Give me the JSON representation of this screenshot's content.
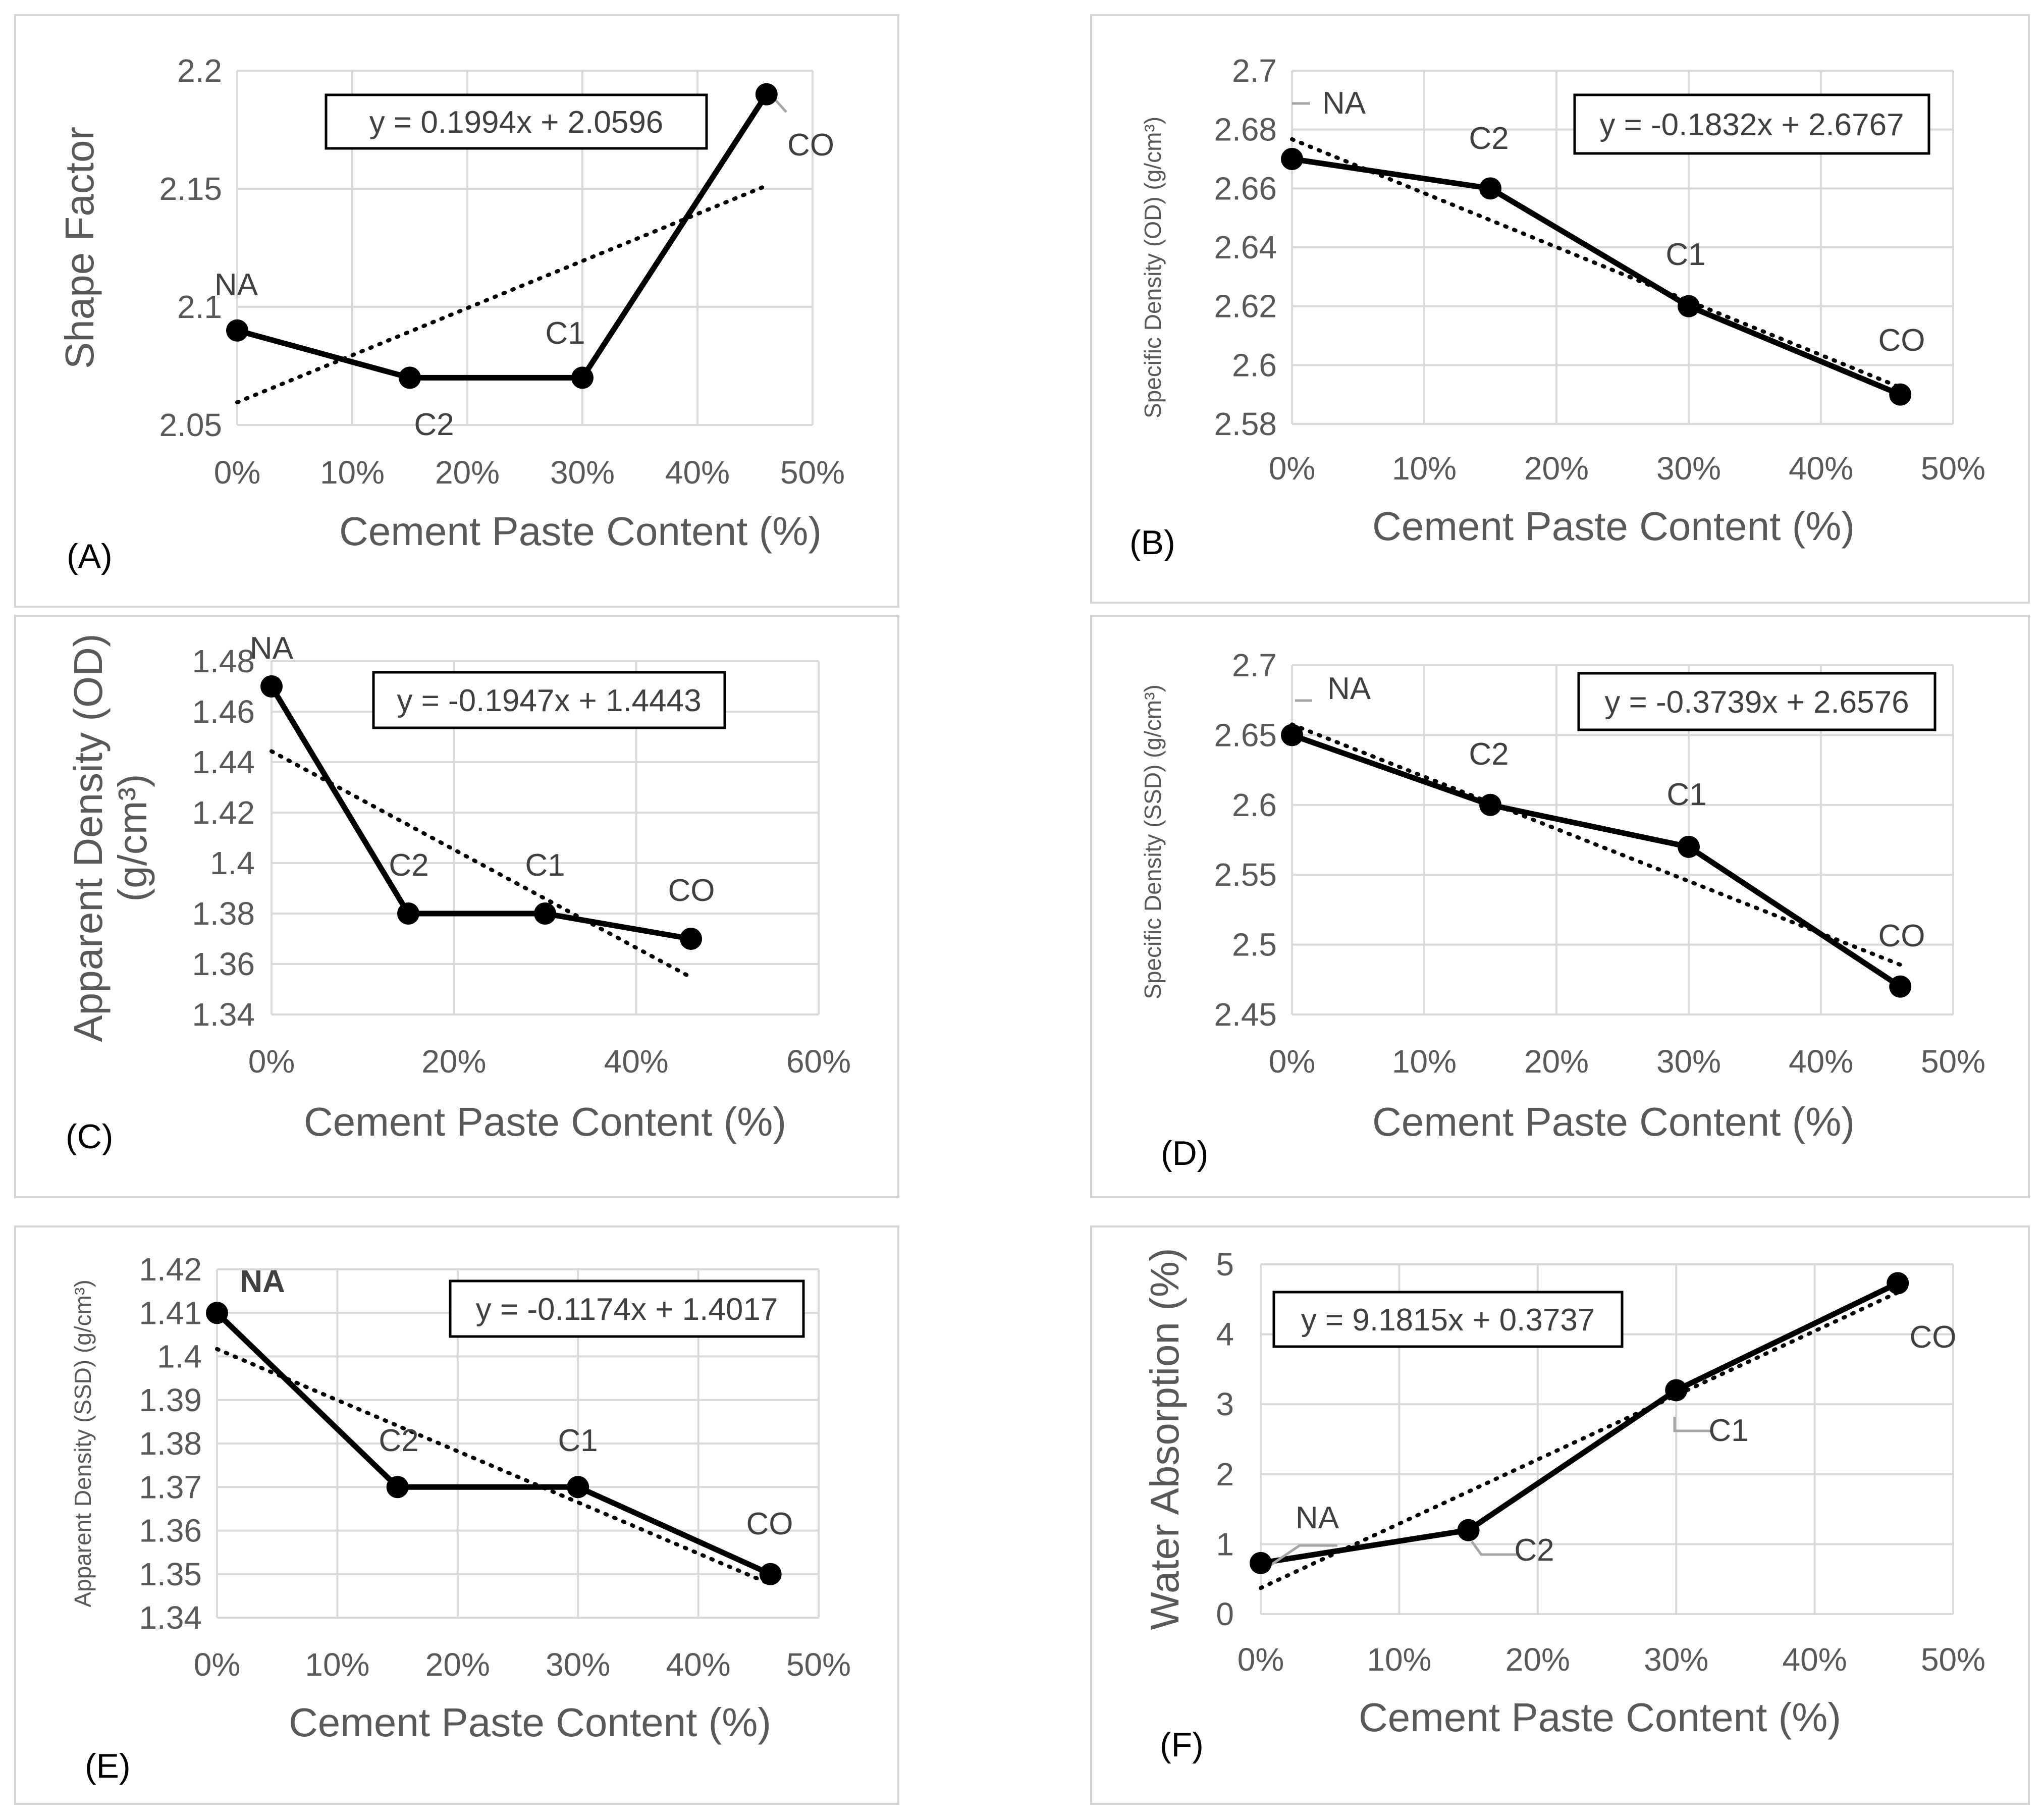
{
  "figure": {
    "description_colors": {
      "series": "#000000",
      "grid": "#d9d9d9",
      "text": "#595959",
      "frame": "#d4d4d4"
    }
  },
  "chart_data": [
    {
      "id": "A",
      "type": "line",
      "panel_label": "(A)",
      "xlabel": "Cement Paste Content (%)",
      "ylabel": "Shape Factor",
      "x_ticks": [
        "0%",
        "10%",
        "20%",
        "30%",
        "40%",
        "50%"
      ],
      "y_ticks": [
        "2.05",
        "2.1",
        "2.15",
        "2.2"
      ],
      "xlim": [
        0,
        0.5
      ],
      "ylim": [
        2.05,
        2.2
      ],
      "points": [
        {
          "label": "NA",
          "x": 0,
          "y": 2.09
        },
        {
          "label": "C2",
          "x": 0.15,
          "y": 2.07
        },
        {
          "label": "C1",
          "x": 0.3,
          "y": 2.07
        },
        {
          "label": "CO",
          "x": 0.46,
          "y": 2.19
        }
      ],
      "trendline": {
        "equation": "y = 0.1994x + 2.0596",
        "slope": 0.1994,
        "intercept": 2.0596,
        "x_range": [
          0,
          0.46
        ]
      }
    },
    {
      "id": "B",
      "type": "line",
      "panel_label": "(B)",
      "xlabel": "Cement Paste Content (%)",
      "ylabel": "Specific Density (OD) (g/cm³)",
      "x_ticks": [
        "0%",
        "10%",
        "20%",
        "30%",
        "40%",
        "50%"
      ],
      "y_ticks": [
        "2.58",
        "2.6",
        "2.62",
        "2.64",
        "2.66",
        "2.68",
        "2.7"
      ],
      "xlim": [
        0,
        0.5
      ],
      "ylim": [
        2.58,
        2.7
      ],
      "points": [
        {
          "label": "NA",
          "x": 0,
          "y": 2.67
        },
        {
          "label": "C2",
          "x": 0.15,
          "y": 2.66
        },
        {
          "label": "C1",
          "x": 0.3,
          "y": 2.62
        },
        {
          "label": "CO",
          "x": 0.46,
          "y": 2.59
        }
      ],
      "trendline": {
        "equation": "y = -0.1832x + 2.6767",
        "slope": -0.1832,
        "intercept": 2.6767,
        "x_range": [
          0,
          0.46
        ]
      }
    },
    {
      "id": "C",
      "type": "line",
      "panel_label": "(C)",
      "xlabel": "Cement Paste Content (%)",
      "ylabel_line1": "Apparent Density (OD)",
      "ylabel_line2": "(g/cm³)",
      "x_ticks": [
        "0%",
        "20%",
        "40%",
        "60%"
      ],
      "y_ticks": [
        "1.34",
        "1.36",
        "1.38",
        "1.4",
        "1.42",
        "1.44",
        "1.46",
        "1.48"
      ],
      "xlim": [
        0,
        0.6
      ],
      "ylim": [
        1.34,
        1.48
      ],
      "points": [
        {
          "label": "NA",
          "x": 0,
          "y": 1.47
        },
        {
          "label": "C2",
          "x": 0.15,
          "y": 1.38
        },
        {
          "label": "C1",
          "x": 0.3,
          "y": 1.38
        },
        {
          "label": "CO",
          "x": 0.46,
          "y": 1.37
        }
      ],
      "trendline": {
        "equation": "y = -0.1947x + 1.4443",
        "slope": -0.1947,
        "intercept": 1.4443,
        "x_range": [
          0,
          0.46
        ]
      }
    },
    {
      "id": "D",
      "type": "line",
      "panel_label": "(D)",
      "xlabel": "Cement Paste Content (%)",
      "ylabel": "Specific Density (SSD) (g/cm³)",
      "x_ticks": [
        "0%",
        "10%",
        "20%",
        "30%",
        "40%",
        "50%"
      ],
      "y_ticks": [
        "2.45",
        "2.5",
        "2.55",
        "2.6",
        "2.65",
        "2.7"
      ],
      "xlim": [
        0,
        0.5
      ],
      "ylim": [
        2.45,
        2.7
      ],
      "points": [
        {
          "label": "NA",
          "x": 0,
          "y": 2.65
        },
        {
          "label": "C2",
          "x": 0.15,
          "y": 2.6
        },
        {
          "label": "C1",
          "x": 0.3,
          "y": 2.57
        },
        {
          "label": "CO",
          "x": 0.46,
          "y": 2.47
        }
      ],
      "trendline": {
        "equation": "y = -0.3739x + 2.6576",
        "slope": -0.3739,
        "intercept": 2.6576,
        "x_range": [
          0,
          0.46
        ]
      }
    },
    {
      "id": "E",
      "type": "line",
      "panel_label": "(E)",
      "xlabel": "Cement Paste Content (%)",
      "ylabel": "Apparent Density (SSD) (g/cm³)",
      "x_ticks": [
        "0%",
        "10%",
        "20%",
        "30%",
        "40%",
        "50%"
      ],
      "y_ticks": [
        "1.34",
        "1.35",
        "1.36",
        "1.37",
        "1.38",
        "1.39",
        "1.4",
        "1.41",
        "1.42"
      ],
      "xlim": [
        0,
        0.5
      ],
      "ylim": [
        1.34,
        1.42
      ],
      "points": [
        {
          "label": "NA",
          "x": 0,
          "y": 1.41
        },
        {
          "label": "C2",
          "x": 0.15,
          "y": 1.37
        },
        {
          "label": "C1",
          "x": 0.3,
          "y": 1.37
        },
        {
          "label": "CO",
          "x": 0.46,
          "y": 1.35
        }
      ],
      "trendline": {
        "equation": "y = -0.1174x + 1.4017",
        "slope": -0.1174,
        "intercept": 1.4017,
        "x_range": [
          0,
          0.46
        ]
      }
    },
    {
      "id": "F",
      "type": "line",
      "panel_label": "(F)",
      "xlabel": "Cement Paste Content (%)",
      "ylabel": "Water Absorption (%)",
      "x_ticks": [
        "0%",
        "10%",
        "20%",
        "30%",
        "40%",
        "50%"
      ],
      "y_ticks": [
        "0",
        "1",
        "2",
        "3",
        "4",
        "5"
      ],
      "xlim": [
        0,
        0.5
      ],
      "ylim": [
        0,
        5
      ],
      "points": [
        {
          "label": "NA",
          "x": 0,
          "y": 0.73
        },
        {
          "label": "C2",
          "x": 0.15,
          "y": 1.2
        },
        {
          "label": "C1",
          "x": 0.3,
          "y": 3.2
        },
        {
          "label": "CO",
          "x": 0.46,
          "y": 4.73
        }
      ],
      "trendline": {
        "equation": "y = 9.1815x + 0.3737",
        "slope": 9.1815,
        "intercept": 0.3737,
        "x_range": [
          0,
          0.46
        ]
      }
    }
  ]
}
